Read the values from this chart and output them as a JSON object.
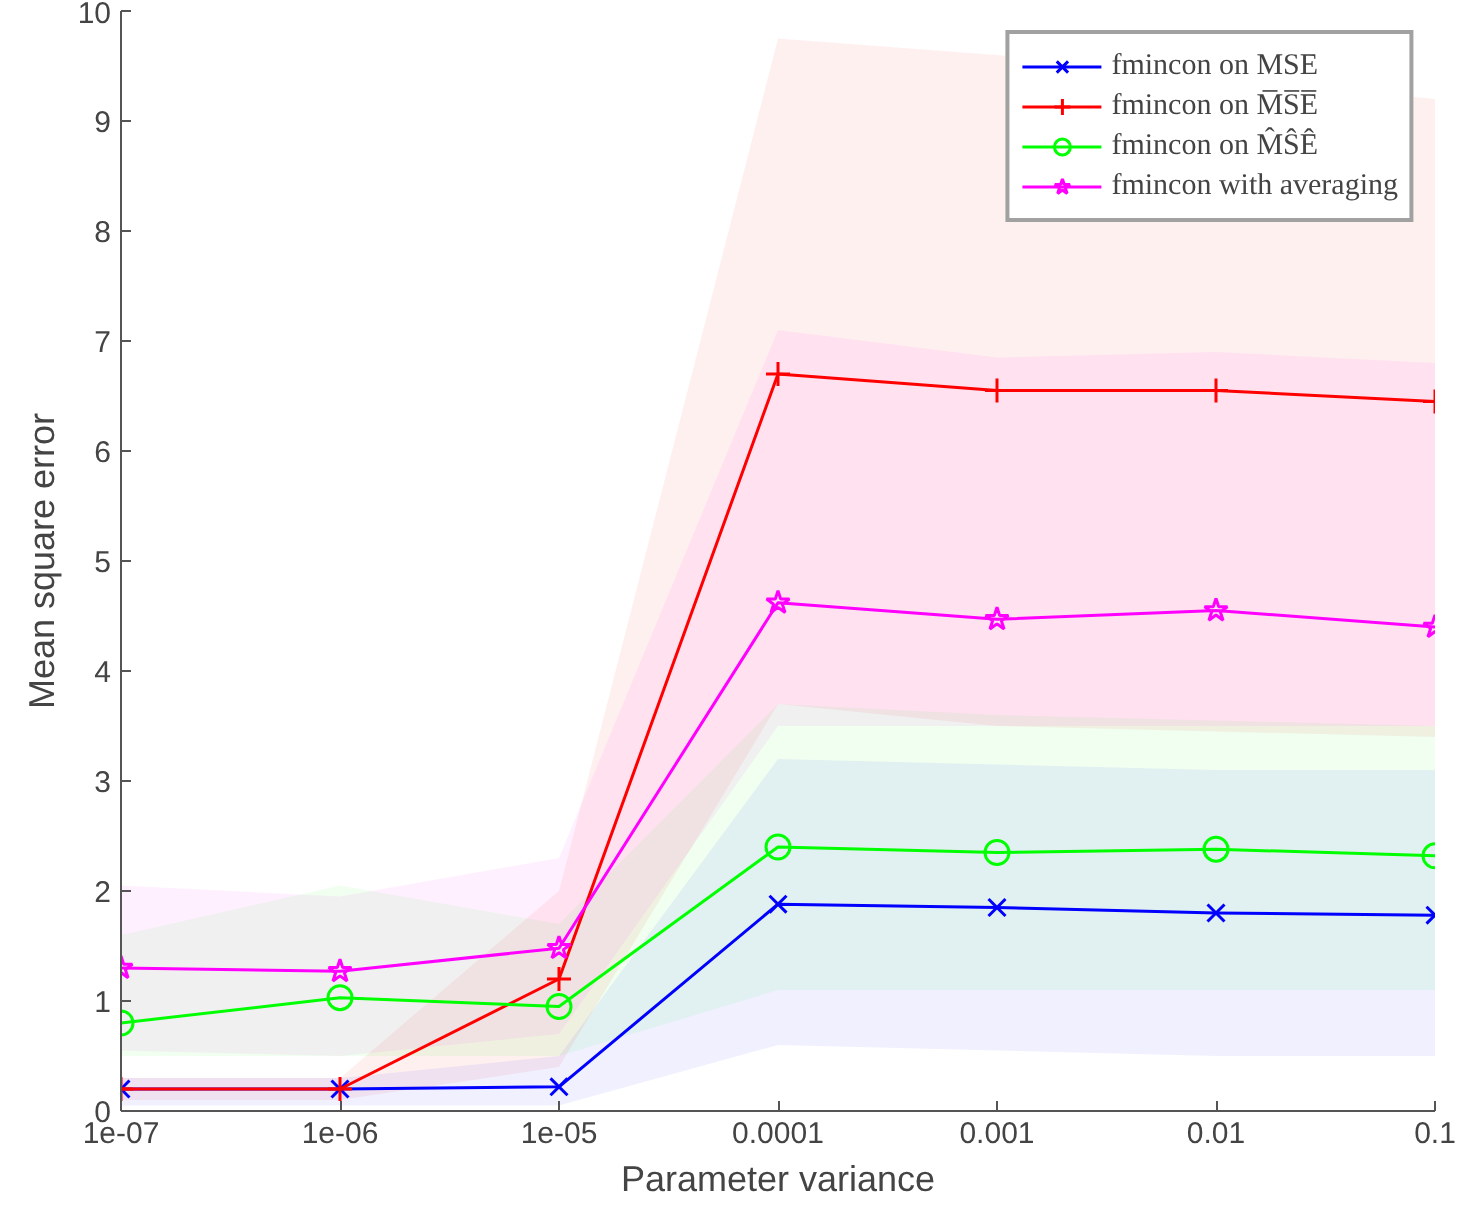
{
  "chart_data": {
    "type": "line",
    "xlabel": "Parameter variance",
    "ylabel": "Mean square error",
    "categories": [
      "1e-07",
      "1e-06",
      "1e-05",
      "0.0001",
      "0.001",
      "0.01",
      "0.1"
    ],
    "ylim": [
      0,
      10
    ],
    "yticks": [
      0,
      1,
      2,
      3,
      4,
      5,
      6,
      7,
      8,
      9,
      10
    ],
    "grid": false,
    "legend": "top right",
    "series": [
      {
        "name": "fmincon on MSE",
        "color": "#0000ff",
        "marker": "x",
        "values": [
          0.2,
          0.2,
          0.22,
          1.88,
          1.85,
          1.8,
          1.78
        ],
        "lower": [
          0.05,
          0.05,
          0.05,
          0.6,
          0.55,
          0.5,
          0.5
        ],
        "upper": [
          0.3,
          0.3,
          0.5,
          3.2,
          3.15,
          3.1,
          3.1
        ]
      },
      {
        "name": "fmincon on M̅S̅E̅",
        "color": "#ff0000",
        "marker": "cross",
        "values": [
          0.2,
          0.2,
          1.2,
          6.7,
          6.55,
          6.55,
          6.45
        ],
        "lower": [
          0.1,
          0.1,
          0.4,
          3.7,
          3.5,
          null,
          3.4
        ],
        "upper": [
          0.3,
          0.3,
          2.0,
          9.75,
          9.6,
          null,
          9.2
        ]
      },
      {
        "name": "fmincon on M̂ŜÊ",
        "color": "#00ff00",
        "marker": "circle",
        "values": [
          0.8,
          1.03,
          0.95,
          2.4,
          2.35,
          2.38,
          2.32
        ],
        "lower": [
          0.5,
          0.5,
          0.5,
          1.1,
          1.1,
          1.1,
          1.1
        ],
        "upper": [
          1.6,
          2.05,
          1.7,
          3.7,
          3.6,
          3.55,
          3.5
        ]
      },
      {
        "name": "fmincon with averaging",
        "color": "#ff00ff",
        "marker": "star",
        "values": [
          1.3,
          1.27,
          1.48,
          4.62,
          4.47,
          4.55,
          4.4
        ],
        "lower": [
          0.55,
          0.5,
          0.7,
          3.5,
          3.5,
          3.5,
          3.5
        ],
        "upper": [
          2.05,
          1.95,
          2.3,
          7.1,
          6.85,
          6.9,
          6.8
        ]
      }
    ]
  }
}
